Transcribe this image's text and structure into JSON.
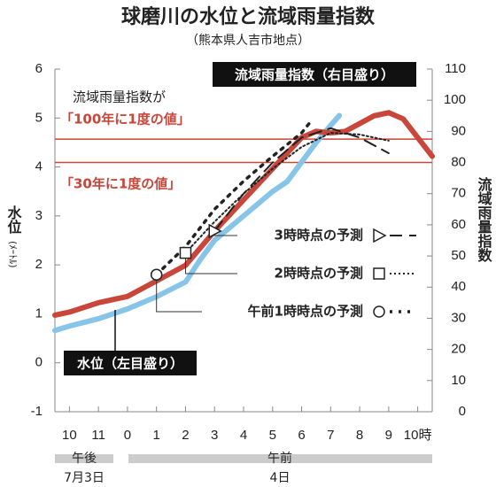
{
  "chart_data": {
    "type": "line",
    "title": "球磨川の水位と流域雨量指数",
    "subtitle": "（熊本県人吉市地点）",
    "y_label": "水位",
    "y_unit": "(ﾒｰﾄﾙ)",
    "y2_label": "流域雨量指数",
    "xlim": [
      -2.5,
      10.5
    ],
    "xticks": [
      {
        "value": -2,
        "label": "10"
      },
      {
        "value": -1,
        "label": "11"
      },
      0,
      1,
      2,
      3,
      4,
      5,
      6,
      7,
      8,
      9,
      {
        "value": 10,
        "label": "10時"
      }
    ],
    "ylim": [
      -1,
      6
    ],
    "yticks": [
      -1,
      0,
      1,
      2,
      3,
      4,
      5,
      6
    ],
    "y2lim": [
      0,
      110
    ],
    "y2ticks": [
      0,
      10,
      20,
      30,
      40,
      50,
      60,
      70,
      80,
      90,
      100,
      110
    ],
    "x_groups": [
      {
        "label": "午後",
        "date": "7月3日"
      },
      {
        "label": "午前",
        "date": "4日"
      }
    ],
    "ref_note": "流域雨量指数が",
    "ref_lines": [
      {
        "value": 87.5,
        "label": "「100年に1度の値」",
        "color": "#c8463a"
      },
      {
        "value": 80,
        "label": "「30年に1度の値」",
        "color": "#c8463a"
      }
    ],
    "annotations": [
      "流域雨量指数（右目盛り）",
      "水位（左目盛り）"
    ],
    "series": [
      {
        "name": "水位",
        "axis": "y",
        "color": "#86c5e8",
        "style": "solid",
        "x": [
          -2.5,
          -2,
          -1,
          0,
          1,
          2,
          2.5,
          3,
          4,
          5,
          5.5,
          6,
          6.5,
          7,
          7.3
        ],
        "values": [
          0.66,
          0.75,
          0.9,
          1.1,
          1.35,
          1.65,
          2.1,
          2.5,
          3.0,
          3.5,
          3.7,
          4.1,
          4.5,
          4.85,
          5.05
        ]
      },
      {
        "name": "流域雨量指数",
        "axis": "y2",
        "color": "#c8463a",
        "style": "solid",
        "x": [
          -2.5,
          -2,
          -1,
          0,
          1,
          2,
          3,
          4,
          5,
          5.5,
          6,
          6.5,
          7,
          7.5,
          8,
          8.5,
          9,
          9.5,
          10,
          10.5
        ],
        "values": [
          31,
          32,
          35,
          37,
          42,
          47,
          58,
          68,
          78,
          83,
          88,
          90,
          89.5,
          90,
          92.5,
          95,
          96,
          94,
          88,
          82
        ]
      },
      {
        "name": "3時時点の予測",
        "axis": "y2",
        "color": "#222",
        "style": "dashed",
        "marker": "triangle",
        "x": [
          3,
          4,
          5,
          6,
          7,
          8,
          9
        ],
        "values": [
          58,
          70,
          80,
          88,
          91,
          88,
          83
        ]
      },
      {
        "name": "2時時点の予測",
        "axis": "y2",
        "color": "#222",
        "style": "dotted",
        "marker": "square",
        "x": [
          2,
          3,
          4,
          5,
          6,
          7,
          8,
          9
        ],
        "values": [
          51,
          61,
          70,
          78,
          85,
          89.5,
          89,
          87
        ]
      },
      {
        "name": "午前1時時点の予測",
        "axis": "y2",
        "color": "#222",
        "style": "dots",
        "marker": "circle",
        "x": [
          1,
          2,
          3,
          4,
          5,
          6,
          6.3
        ],
        "values": [
          44,
          53,
          65,
          74,
          82,
          89.5,
          93
        ]
      }
    ]
  }
}
